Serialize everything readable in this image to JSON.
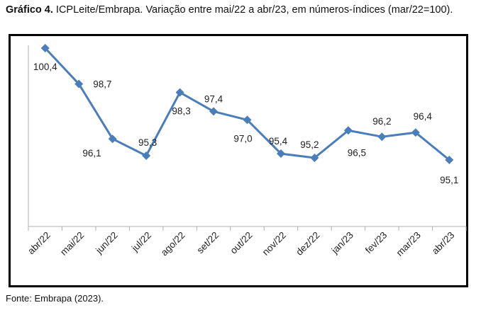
{
  "caption": {
    "label": "Gráfico 4.",
    "text": "ICPLeite/Embrapa. Variação entre mai/22 a abr/23, em números-índices (mar/22=100)."
  },
  "source": "Fonte: Embrapa (2023).",
  "colors": {
    "series": "#4a7ebb",
    "frame": "#000000",
    "axis": "#b0b0b0"
  },
  "chart_data": {
    "type": "line",
    "title": "",
    "xlabel": "",
    "ylabel": "",
    "categories": [
      "abr/22",
      "mai/22",
      "jun/22",
      "jul/22",
      "ago/22",
      "set/22",
      "out/22",
      "nov/22",
      "dez/22",
      "jan/23",
      "fev/23",
      "mar/23",
      "abr/23"
    ],
    "series": [
      {
        "values": [
          100.4,
          98.7,
          96.1,
          95.3,
          98.3,
          97.4,
          97.0,
          95.4,
          95.2,
          96.5,
          96.2,
          96.4,
          95.1
        ]
      }
    ],
    "data_labels": [
      "100,4",
      "98,7",
      "96,1",
      "95,3",
      "98,3",
      "97,4",
      "97,0",
      "95,4",
      "95,2",
      "96,5",
      "96,2",
      "96,4",
      "95,1"
    ],
    "grid": false,
    "marker": "diamond",
    "legend": "none"
  }
}
